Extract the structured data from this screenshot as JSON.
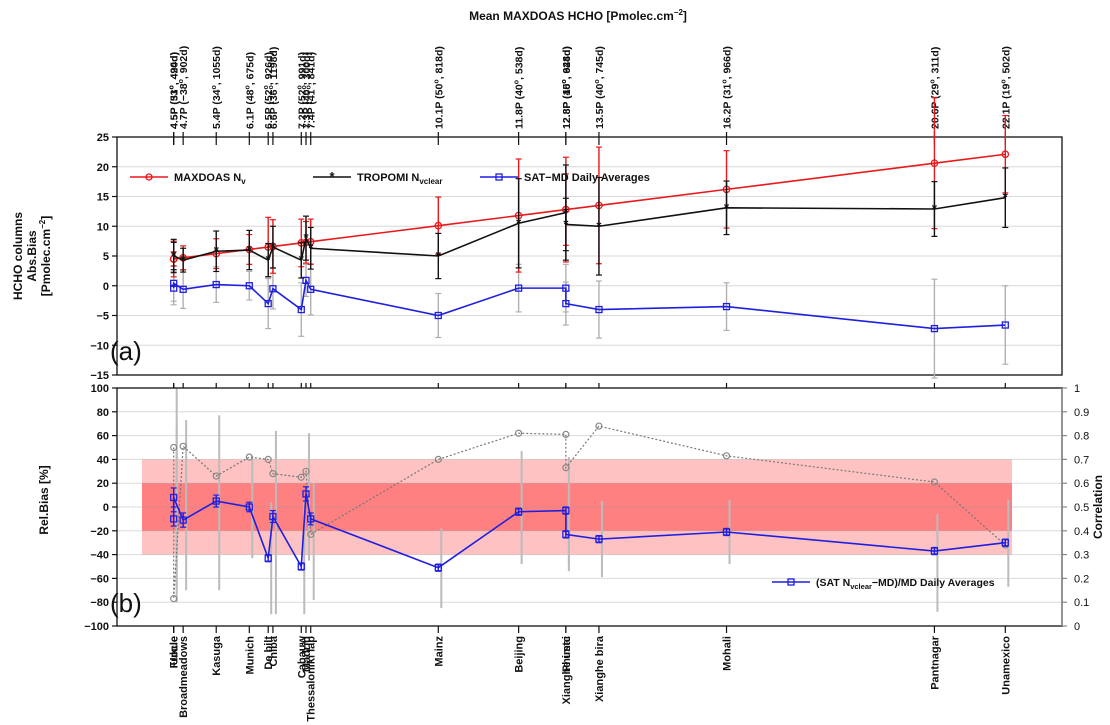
{
  "chart_data": [
    {
      "panel": "a",
      "type": "line",
      "top_title": "Mean MAXDOAS HCHO [Pmolec.cm",
      "top_title_sup": "−2",
      "top_title_end": "]",
      "panel_label": "(a)",
      "ylabel_lines": [
        "HCHO columns",
        "Abs.Bias",
        "[Pmolec.cm"
      ],
      "ylabel_sup": "−2",
      "ylabel_end": "]",
      "ylim": [
        -15,
        25
      ],
      "yticks": [
        "−15",
        "−10",
        "−5",
        "0",
        "5",
        "10",
        "15",
        "20",
        "25"
      ],
      "grid": true,
      "x": [
        4.5,
        4.5,
        4.7,
        5.4,
        6.1,
        6.5,
        6.6,
        7.2,
        7.3,
        7.4,
        10.1,
        11.8,
        12.8,
        12.8,
        13.5,
        16.2,
        20.6,
        22.1
      ],
      "top_ticks": [
        {
          "main": "4.5P (51",
          "sup": "o",
          "rest": ", 490d)"
        },
        {
          "main": "4.5P (33",
          "sup": "o",
          "rest": ", 424d)"
        },
        {
          "main": "4.7P (−38",
          "sup": "o",
          "rest": ", 902d)"
        },
        {
          "main": "5.4P (34",
          "sup": "o",
          "rest": ", 1055d)"
        },
        {
          "main": "6.1P (48",
          "sup": "o",
          "rest": ", 675d)"
        },
        {
          "main": "6.5P (52",
          "sup": "o",
          "rest": ", 926d)"
        },
        {
          "main": "6.6P (36",
          "sup": "o",
          "rest": ", 1198d)"
        },
        {
          "main": "7.2P (52",
          "sup": "o",
          "rest": ", 991d)"
        },
        {
          "main": "7.3P (40",
          "sup": "o",
          "rest": ", 300d)"
        },
        {
          "main": "7.4P (41",
          "sup": "o",
          "rest": ", 841d)"
        },
        {
          "main": "10.1P (50",
          "sup": "o",
          "rest": ", 818d)"
        },
        {
          "main": "11.8P (40",
          "sup": "o",
          "rest": ", 538d)"
        },
        {
          "main": "12.8P (40",
          "sup": "o",
          "rest": ", 628d)"
        },
        {
          "main": "12.8P (15",
          "sup": "o",
          "rest": ", 944d)"
        },
        {
          "main": "13.5P (40",
          "sup": "o",
          "rest": ", 745d)"
        },
        {
          "main": "16.2P (31",
          "sup": "o",
          "rest": ", 966d)"
        },
        {
          "main": "20.6P (29",
          "sup": "o",
          "rest": ", 311d)"
        },
        {
          "main": "22.1P (19",
          "sup": "o",
          "rest": ", 502d)"
        }
      ],
      "legend": [
        {
          "text": "MAXDOAS N",
          "sub": "v",
          "color": "#e8191b",
          "marker": "circle"
        },
        {
          "text": "TROPOMI N",
          "sub": "vclear",
          "color": "#111111",
          "marker": "star"
        },
        {
          "text": "SAT−MD Daily Averages",
          "sub": "",
          "color": "#1f1fe0",
          "marker": "square"
        }
      ],
      "series": [
        {
          "name": "MAXDOAS",
          "color": "#e8191b",
          "values": [
            4.5,
            4.5,
            4.7,
            5.4,
            6.1,
            6.5,
            6.6,
            7.2,
            7.3,
            7.4,
            10.1,
            11.8,
            12.8,
            12.8,
            13.5,
            16.2,
            20.6,
            22.1
          ],
          "err": [
            3.0,
            1.2,
            2.0,
            2.5,
            2.5,
            5.0,
            4.5,
            4.0,
            3.5,
            3.8,
            4.8,
            9.5,
            8.8,
            6.0,
            9.8,
            6.5,
            11.0,
            6.5
          ]
        },
        {
          "name": "TROPOMI",
          "color": "#111111",
          "values": [
            5.0,
            5.0,
            4.3,
            5.8,
            6.0,
            4.3,
            6.5,
            4.3,
            8.0,
            6.3,
            5.0,
            10.5,
            12.3,
            10.3,
            10.0,
            13.1,
            12.9,
            14.8
          ],
          "err": [
            2.8,
            2.3,
            2.0,
            3.4,
            3.3,
            2.8,
            3.5,
            3.0,
            3.7,
            3.5,
            3.8,
            7.5,
            8.0,
            4.4,
            8.2,
            4.5,
            4.6,
            5.0
          ]
        },
        {
          "name": "SAT−MD",
          "color": "#1f1fe0",
          "values": [
            -0.4,
            0.4,
            -0.6,
            0.2,
            0.0,
            -3.0,
            -0.5,
            -4.0,
            0.9,
            -0.6,
            -5.0,
            -0.4,
            -0.4,
            -3.0,
            -4.0,
            -3.5,
            -7.2,
            -6.6
          ],
          "err": [
            2.8,
            3.0,
            3.2,
            3.0,
            2.4,
            4.2,
            3.4,
            4.5,
            2.7,
            4.3,
            3.7,
            4.0,
            4.0,
            3.6,
            4.8,
            4.0,
            8.3,
            6.6
          ]
        }
      ]
    },
    {
      "panel": "b",
      "type": "line",
      "panel_label": "(b)",
      "ylabel": "Rel.Bias [%]",
      "ylabel_right": "Correlation",
      "ylim": [
        -100,
        100
      ],
      "ylim_right": [
        0,
        1
      ],
      "yticks": [
        "−100",
        "−80",
        "−60",
        "−40",
        "−20",
        "0",
        "20",
        "40",
        "60",
        "80",
        "100"
      ],
      "yticks_right": [
        "0",
        "0.1",
        "0.2",
        "0.3",
        "0.4",
        "0.5",
        "0.6",
        "0.7",
        "0.8",
        "0.9",
        "1"
      ],
      "grid": true,
      "bands": [
        {
          "from": -40,
          "to": 40,
          "color": "#ffc2c2"
        },
        {
          "from": -20,
          "to": 20,
          "color": "#ff8080"
        }
      ],
      "categories": [
        "Uccle",
        "Fukue",
        "Broadmeadows",
        "Kasuga",
        "Munich",
        "De bilt",
        "Chiba",
        "Cabauw",
        "Madrid",
        "Thessaloniki lap",
        "Mainz",
        "Beijing",
        "Xianghe ustc",
        "Phimai",
        "Xianghe bira",
        "Mohali",
        "Pantnagar",
        "Unamexico"
      ],
      "legend": [
        {
          "text": "(SAT N",
          "sub": "vclear",
          "rest": "−MD)/MD Daily Averages",
          "color": "#1f1fe0"
        }
      ],
      "series": [
        {
          "name": "Rel.Bias",
          "color": "#1f1fe0",
          "axis": "left",
          "values": [
            -10,
            8,
            -11,
            5,
            0,
            -43,
            -8,
            -50,
            11,
            -10,
            -51,
            -4,
            -3,
            -23,
            -27,
            -21,
            -37,
            -30
          ],
          "err": [
            6,
            8,
            6,
            5,
            4,
            3,
            5,
            3,
            6,
            5,
            3,
            3,
            3,
            3,
            3,
            3,
            3,
            3
          ],
          "spread": [
            [
              -68,
              68
            ],
            [
              -80,
              100
            ],
            [
              -70,
              73
            ],
            [
              -70,
              77
            ],
            [
              -43,
              43
            ],
            [
              -90,
              4
            ],
            [
              -90,
              64
            ],
            [
              -90,
              6
            ],
            [
              -45,
              62
            ],
            [
              -78,
              20
            ],
            [
              -85,
              -18
            ],
            [
              -48,
              47
            ],
            [
              -48,
              42
            ],
            [
              -54,
              8
            ],
            [
              -59,
              5
            ],
            [
              -48,
              6
            ],
            [
              -88,
              -6
            ],
            [
              -67,
              6
            ]
          ]
        },
        {
          "name": "Correlation",
          "color": "#888888",
          "axis": "right",
          "dash": true,
          "values": [
            0.75,
            0.115,
            0.755,
            0.63,
            0.71,
            0.7,
            0.64,
            0.625,
            0.65,
            0.385,
            0.7,
            0.81,
            0.805,
            0.665,
            0.84,
            0.715,
            0.605,
            0.34
          ]
        }
      ]
    }
  ]
}
